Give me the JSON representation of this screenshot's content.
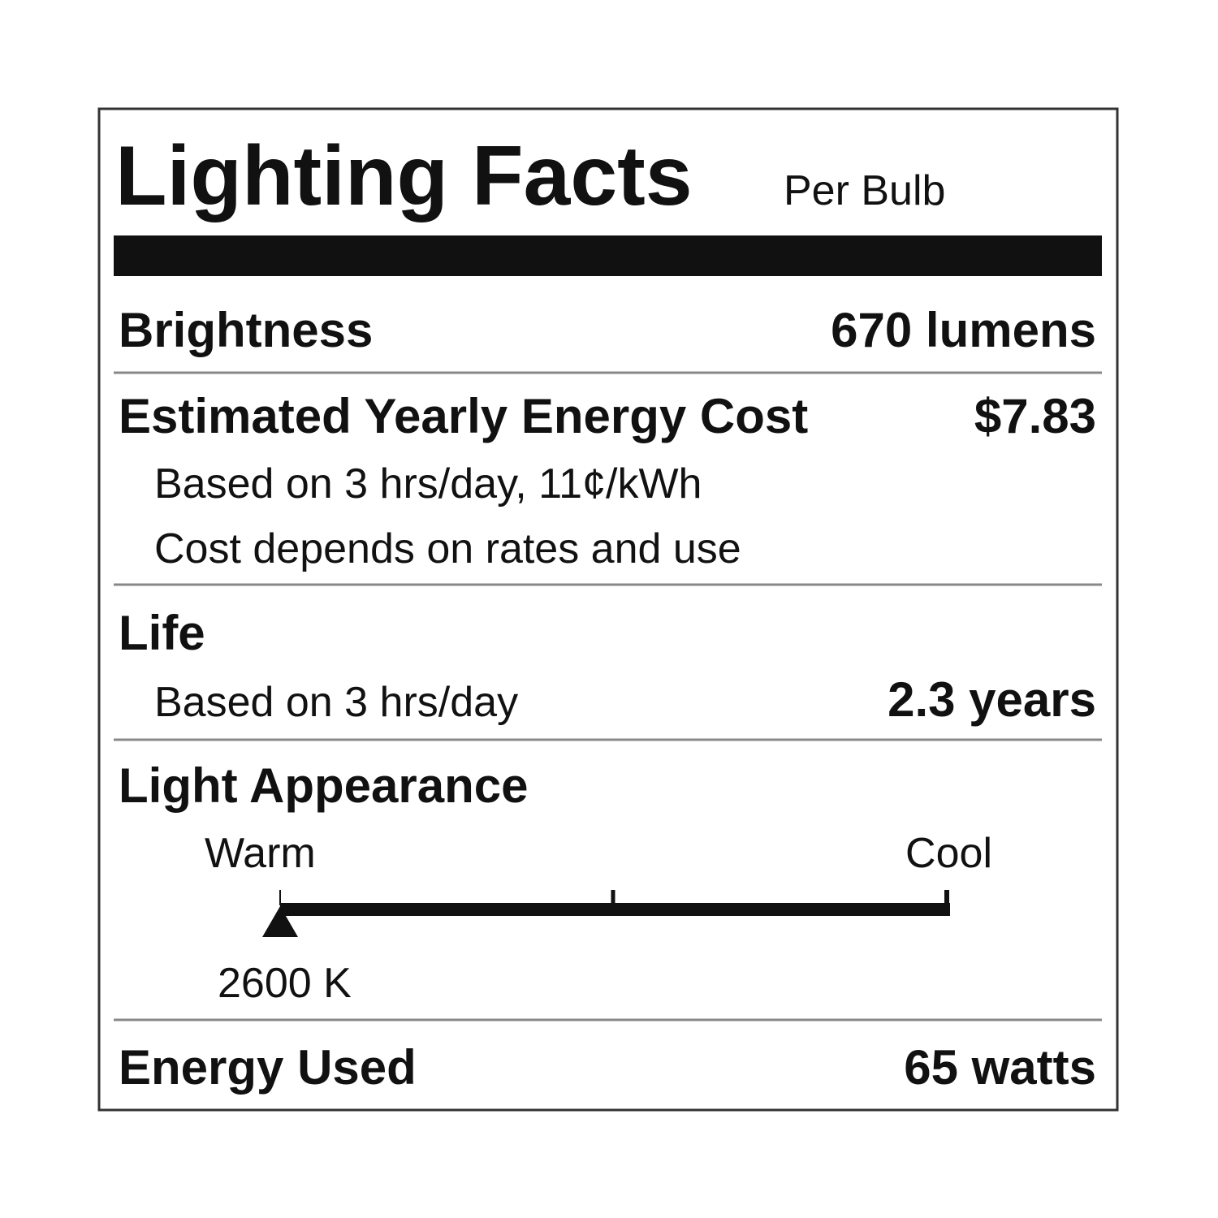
{
  "header": {
    "title": "Lighting Facts",
    "subtitle": "Per Bulb"
  },
  "brightness": {
    "label": "Brightness",
    "value": "670 lumens"
  },
  "cost": {
    "label": "Estimated Yearly Energy Cost",
    "value": "$7.83",
    "notes": [
      "Based on 3 hrs/day, 11¢/kWh",
      "Cost depends on rates and use"
    ]
  },
  "life": {
    "label": "Life",
    "note": "Based on 3 hrs/day",
    "value": "2.3 years"
  },
  "appearance": {
    "label": "Light Appearance",
    "warm": "Warm",
    "cool": "Cool",
    "value": "2600 K"
  },
  "energy": {
    "label": "Energy Used",
    "value": "65 watts"
  }
}
